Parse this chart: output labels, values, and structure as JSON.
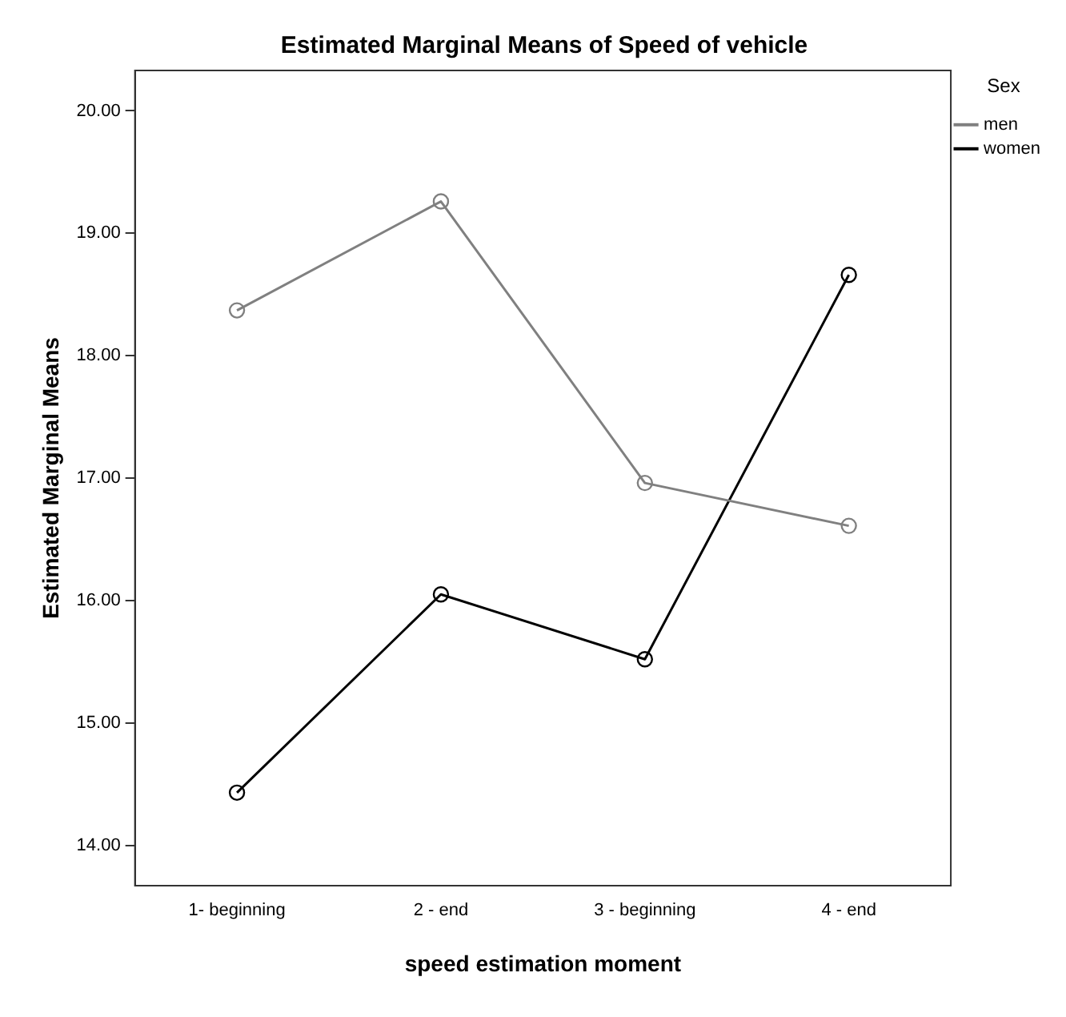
{
  "chart_data": {
    "type": "line",
    "title": "Estimated Marginal Means of Speed of vehicle",
    "xlabel": "speed estimation moment",
    "ylabel": "Estimated Marginal Means",
    "legend_title": "Sex",
    "categories": [
      "1- beginning",
      "2 - end",
      "3 - beginning",
      "4 - end"
    ],
    "series": [
      {
        "name": "men",
        "color": "#808080",
        "values": [
          18.37,
          19.26,
          16.96,
          16.61
        ]
      },
      {
        "name": "women",
        "color": "#000000",
        "values": [
          14.43,
          16.05,
          15.52,
          18.66
        ]
      }
    ],
    "ylim": [
      13.67,
      20.33
    ],
    "yticks": [
      {
        "value": 14,
        "label": "14.00"
      },
      {
        "value": 15,
        "label": "15.00"
      },
      {
        "value": 16,
        "label": "16.00"
      },
      {
        "value": 17,
        "label": "17.00"
      },
      {
        "value": 18,
        "label": "18.00"
      },
      {
        "value": 19,
        "label": "19.00"
      },
      {
        "value": 20,
        "label": "20.00"
      }
    ],
    "grid": false,
    "legend": "top right",
    "marker": "circle",
    "line_style": "solid"
  }
}
